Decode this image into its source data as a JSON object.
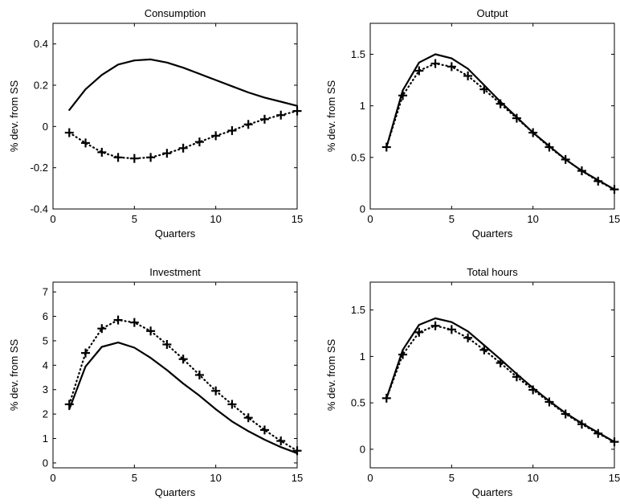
{
  "chart_data": [
    {
      "type": "line",
      "title": "Consumption",
      "xlabel": "Quarters",
      "ylabel": "% dev. from SS",
      "xlim": [
        0,
        15
      ],
      "ylim": [
        -0.4,
        0.5
      ],
      "xticks": [
        0,
        5,
        10,
        15
      ],
      "yticks": [
        -0.4,
        -0.2,
        0,
        0.2,
        0.4
      ],
      "ytick_labels": [
        "-0.4",
        "-0.2",
        "0",
        "0.2",
        "0.4"
      ],
      "x": [
        1,
        2,
        3,
        4,
        5,
        6,
        7,
        8,
        9,
        10,
        11,
        12,
        13,
        14,
        15
      ],
      "series": [
        {
          "style": "solid",
          "values": [
            0.08,
            0.18,
            0.25,
            0.3,
            0.32,
            0.325,
            0.31,
            0.285,
            0.255,
            0.225,
            0.195,
            0.165,
            0.14,
            0.12,
            0.1
          ]
        },
        {
          "style": "dotted-plus",
          "values": [
            -0.03,
            -0.08,
            -0.125,
            -0.15,
            -0.155,
            -0.15,
            -0.13,
            -0.105,
            -0.075,
            -0.045,
            -0.02,
            0.01,
            0.035,
            0.055,
            0.075
          ]
        }
      ]
    },
    {
      "type": "line",
      "title": "Output",
      "xlabel": "Quarters",
      "ylabel": "% dev. from SS",
      "xlim": [
        0,
        15
      ],
      "ylim": [
        0,
        1.8
      ],
      "xticks": [
        0,
        5,
        10,
        15
      ],
      "yticks": [
        0,
        0.5,
        1,
        1.5
      ],
      "ytick_labels": [
        "0",
        "0.5",
        "1",
        "1.5"
      ],
      "x": [
        1,
        2,
        3,
        4,
        5,
        6,
        7,
        8,
        9,
        10,
        11,
        12,
        13,
        14,
        15
      ],
      "series": [
        {
          "style": "solid",
          "values": [
            0.6,
            1.15,
            1.42,
            1.5,
            1.46,
            1.36,
            1.2,
            1.04,
            0.89,
            0.74,
            0.61,
            0.48,
            0.37,
            0.28,
            0.19
          ]
        },
        {
          "style": "dotted-plus",
          "values": [
            0.6,
            1.1,
            1.34,
            1.41,
            1.38,
            1.29,
            1.16,
            1.02,
            0.88,
            0.74,
            0.6,
            0.48,
            0.37,
            0.27,
            0.19
          ]
        }
      ]
    },
    {
      "type": "line",
      "title": "Investment",
      "xlabel": "Quarters",
      "ylabel": "% dev. from SS",
      "xlim": [
        0,
        15
      ],
      "ylim": [
        -0.2,
        7.4
      ],
      "xticks": [
        0,
        5,
        10,
        15
      ],
      "yticks": [
        0,
        1,
        2,
        3,
        4,
        5,
        6,
        7
      ],
      "ytick_labels": [
        "0",
        "1",
        "2",
        "3",
        "4",
        "5",
        "6",
        "7"
      ],
      "x": [
        1,
        2,
        3,
        4,
        5,
        6,
        7,
        8,
        9,
        10,
        11,
        12,
        13,
        14,
        15
      ],
      "series": [
        {
          "style": "solid",
          "values": [
            2.2,
            3.95,
            4.75,
            4.93,
            4.72,
            4.3,
            3.8,
            3.25,
            2.75,
            2.2,
            1.7,
            1.3,
            0.95,
            0.65,
            0.4
          ]
        },
        {
          "style": "dotted-plus",
          "values": [
            2.4,
            4.5,
            5.5,
            5.85,
            5.75,
            5.4,
            4.85,
            4.25,
            3.6,
            2.95,
            2.4,
            1.85,
            1.35,
            0.9,
            0.5
          ]
        }
      ]
    },
    {
      "type": "line",
      "title": "Total hours",
      "xlabel": "Quarters",
      "ylabel": "% dev. from SS",
      "xlim": [
        0,
        15
      ],
      "ylim": [
        -0.2,
        1.8
      ],
      "xticks": [
        0,
        5,
        10,
        15
      ],
      "yticks": [
        0,
        0.5,
        1,
        1.5
      ],
      "ytick_labels": [
        "0",
        "0.5",
        "1",
        "1.5"
      ],
      "x": [
        1,
        2,
        3,
        4,
        5,
        6,
        7,
        8,
        9,
        10,
        11,
        12,
        13,
        14,
        15
      ],
      "series": [
        {
          "style": "solid",
          "values": [
            0.55,
            1.07,
            1.34,
            1.41,
            1.37,
            1.27,
            1.12,
            0.97,
            0.81,
            0.66,
            0.52,
            0.39,
            0.28,
            0.18,
            0.08
          ]
        },
        {
          "style": "dotted-plus",
          "values": [
            0.55,
            1.02,
            1.26,
            1.33,
            1.29,
            1.2,
            1.07,
            0.93,
            0.78,
            0.64,
            0.51,
            0.38,
            0.27,
            0.17,
            0.08
          ]
        }
      ]
    }
  ]
}
